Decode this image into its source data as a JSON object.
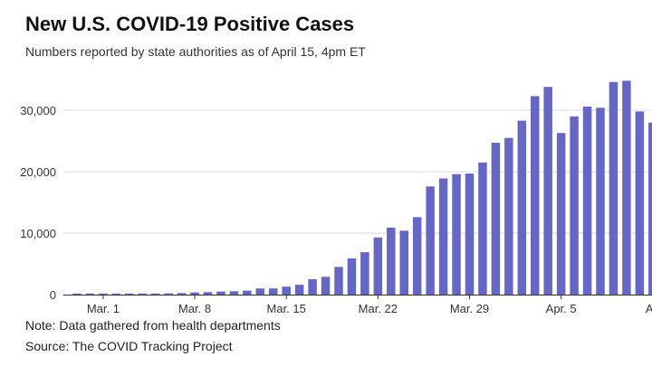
{
  "title": "New U.S. COVID-19 Positive Cases",
  "subtitle": "Numbers reported by state authorities as of April 15, 4pm ET",
  "note": "Note: Data gathered from health departments",
  "source": "Source: The COVID Tracking Project",
  "colors": {
    "bar": "#6666c4",
    "grid": "#d9d9d9",
    "axis": "#333333"
  },
  "chart_data": {
    "type": "bar",
    "title": "New U.S. COVID-19 Positive Cases",
    "xlabel": "",
    "ylabel": "",
    "ylim": [
      0,
      35000
    ],
    "yticks": [
      0,
      10000,
      20000,
      30000
    ],
    "ytick_labels": [
      "0",
      "10,000",
      "20,000",
      "30,000"
    ],
    "grid": "horizontal",
    "categories": [
      "Feb 28",
      "Feb 29",
      "Mar 1",
      "Mar 2",
      "Mar 3",
      "Mar 4",
      "Mar 5",
      "Mar 6",
      "Mar 7",
      "Mar 8",
      "Mar 9",
      "Mar 10",
      "Mar 11",
      "Mar 12",
      "Mar 13",
      "Mar 14",
      "Mar 15",
      "Mar 16",
      "Mar 17",
      "Mar 18",
      "Mar 19",
      "Mar 20",
      "Mar 21",
      "Mar 22",
      "Mar 23",
      "Mar 24",
      "Mar 25",
      "Mar 26",
      "Mar 27",
      "Mar 28",
      "Mar 29",
      "Mar 30",
      "Mar 31",
      "Apr 1",
      "Apr 2",
      "Apr 3",
      "Apr 4",
      "Apr 5",
      "Apr 6",
      "Apr 7",
      "Apr 8",
      "Apr 9",
      "Apr 10",
      "Apr 11",
      "Apr 12"
    ],
    "values": [
      30,
      30,
      40,
      60,
      80,
      120,
      150,
      200,
      250,
      350,
      400,
      500,
      550,
      650,
      1000,
      1000,
      1300,
      1600,
      2500,
      2900,
      4500,
      5900,
      6900,
      9300,
      10900,
      10400,
      12600,
      17600,
      18900,
      19600,
      19700,
      21500,
      24700,
      25500,
      28300,
      32300,
      33800,
      26300,
      29000,
      30600,
      30400,
      34600,
      34800,
      29800,
      28000
    ],
    "xtick_labels": [
      {
        "category": "Mar. 1",
        "index": 2
      },
      {
        "category": "Mar. 8",
        "index": 9
      },
      {
        "category": "Mar. 15",
        "index": 16
      },
      {
        "category": "Mar. 22",
        "index": 23
      },
      {
        "category": "Mar. 29",
        "index": 30
      },
      {
        "category": "Apr. 5",
        "index": 37
      },
      {
        "category": "Ap",
        "index": 44
      }
    ]
  }
}
